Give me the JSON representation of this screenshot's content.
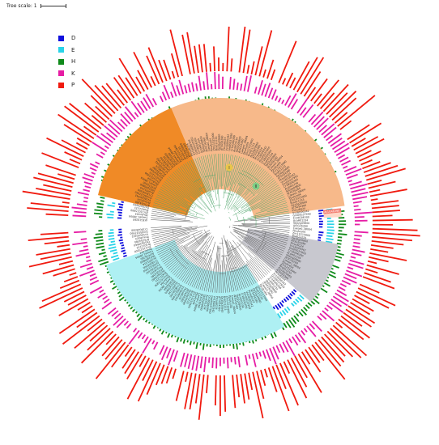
{
  "scale": {
    "label": "Tree scale: 1"
  },
  "legend": [
    {
      "key": "D",
      "color": "#1010dd"
    },
    {
      "key": "E",
      "color": "#29d3e8"
    },
    {
      "key": "H",
      "color": "#0f8a1a"
    },
    {
      "key": "K",
      "color": "#e61ca4"
    },
    {
      "key": "P",
      "color": "#f01a0f"
    }
  ],
  "clades": {
    "orange_dark": "#f08a26",
    "orange_light": "#f7b98a",
    "cyan": "#aef0f3",
    "gray": "#c8c8cf",
    "highlight": "#ffd7c6"
  },
  "markers": [
    {
      "label": "I",
      "color": "#e9c64a"
    },
    {
      "label": "II",
      "color": "#7dcf86"
    }
  ],
  "highlighted_leaf": "At1G46390",
  "leaves": [
    "At3G16260",
    "Caeae1.38004",
    "PpuAce04",
    "Zm11G15900",
    "Bra011233",
    "Os10g20660",
    "AT5G54380",
    "Ptrsu6G24",
    "Vv16G00342",
    "Gm05G37950",
    "Cr18G06300",
    "AcoH01234",
    "Sb02g09800"
  ]
}
